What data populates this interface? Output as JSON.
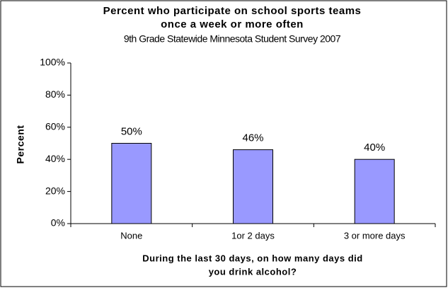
{
  "chart_data": {
    "type": "bar",
    "title": [
      "Percent who participate on school sports teams",
      "once a week or more often"
    ],
    "subtitle": "9th Grade Statewide Minnesota Student Survey 2007",
    "y_label": "Percent",
    "x_label": [
      "During the last 30 days, on how many days did",
      "you drink alcohol?"
    ],
    "categories": [
      "None",
      "1or 2 days",
      "3 or more days"
    ],
    "values": [
      50,
      46,
      40
    ],
    "value_labels": [
      "50%",
      "46%",
      "40%"
    ],
    "color": "#9999ff",
    "ylim": [
      0,
      100
    ],
    "yticks": [
      {
        "value": 0,
        "label": "0%"
      },
      {
        "value": 20,
        "label": "20%"
      },
      {
        "value": 40,
        "label": "40%"
      },
      {
        "value": 60,
        "label": "60%"
      },
      {
        "value": 80,
        "label": "80%"
      },
      {
        "value": 100,
        "label": "100%"
      }
    ],
    "grid": false
  }
}
